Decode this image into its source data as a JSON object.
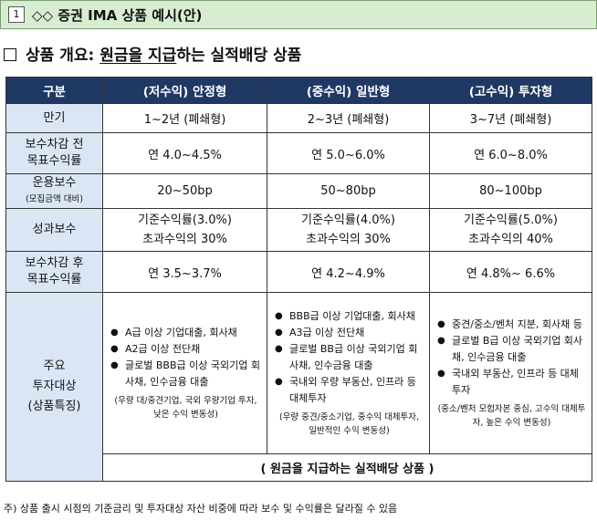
{
  "title": {
    "number": "1",
    "text": "◇◇ 증권 IMA 상품 예시(안)"
  },
  "heading": {
    "prefix": "상품 개요: ",
    "emph": "원금을 지급",
    "suffix": "하는 실적배당 상품"
  },
  "table": {
    "headers": [
      "구분",
      "(저수익) 안정형",
      "(중수익) 일반형",
      "(고수익) 투자형"
    ],
    "rows": {
      "maturity": {
        "label": "만기",
        "values": [
          "1~2년 (폐쇄형)",
          "2~3년 (폐쇄형)",
          "3~7년 (폐쇄형)"
        ]
      },
      "target_pre": {
        "label_1": "보수차감 전",
        "label_2": "목표수익률",
        "values": [
          "연 4.0~4.5%",
          "연 5.0~6.0%",
          "연 6.0~8.0%"
        ]
      },
      "fee": {
        "label_1": "운용보수",
        "label_2": "(모집금액 대비)",
        "values": [
          "20~50bp",
          "50~80bp",
          "80~100bp"
        ]
      },
      "perf_fee": {
        "label": "성과보수",
        "values": [
          [
            "기준수익률(3.0%)",
            "초과수익의 30%"
          ],
          [
            "기준수익률(4.0%)",
            "초과수익의 30%"
          ],
          [
            "기준수익률(5.0%)",
            "초과수익의 40%"
          ]
        ]
      },
      "target_post": {
        "label_1": "보수차감 후",
        "label_2": "목표수익률",
        "values": [
          "연 3.5~3.7%",
          "연 4.2~4.9%",
          "연 4.8%~ 6.6%"
        ]
      },
      "invest": {
        "label_1": "주요",
        "label_2": "투자대상",
        "label_3": "(상품특징)",
        "cols": [
          {
            "items": [
              "A급 이상 기업대출, 회사채",
              "A2급 이상 전단채",
              "글로벌 BBB급 이상 국외기업 회사채, 인수금융 대출"
            ],
            "note": "(우량 대/중견기업, 국외 우량기업 투자, 낮은 수익 변동성)"
          },
          {
            "items": [
              "BBB급 이상 기업대출, 회사채",
              "A3급 이상 전단채",
              "글로벌 BB급 이상 국외기업 회사채, 인수금융 대출",
              "국내외 우량 부동산, 인프라 등 대체투자"
            ],
            "note": "(우량 중견/중소기업, 중수익 대체투자, 일반적인 수익 변동성)"
          },
          {
            "items": [
              "중견/중소/벤처 지분, 회사채 등",
              "글로벌 B급 이상 국외기업 회사채, 인수금융 대출",
              "국내외 부동산, 인프라 등 대체투자"
            ],
            "note": "(중소/벤처 모험자본 중심, 고수익 대체투자, 높은 수익 변동성)"
          }
        ]
      },
      "summary": {
        "open": "( ",
        "plain": "원금을 지급하는 ",
        "bold": "실적배당",
        "tail": " 상품 )"
      }
    }
  },
  "footnote": "주) 상품 출시 시점의 기준금리 및 투자대상 자산 비중에 따라 보수 및 수익률은 달라질 수 있음"
}
